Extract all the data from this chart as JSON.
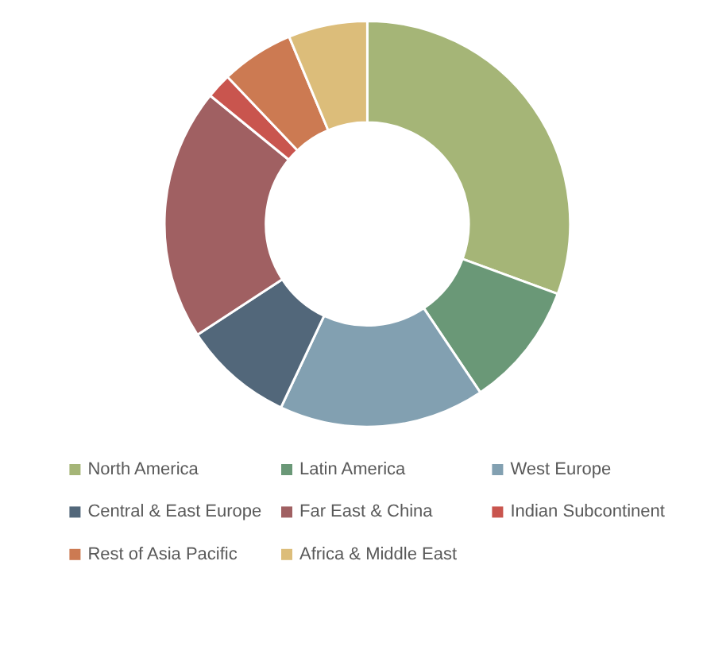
{
  "chart_data": {
    "type": "donut",
    "categories": [
      "North America",
      "Latin America",
      "West Europe",
      "Central & East Europe",
      "Far East & China",
      "Indian Subcontinent",
      "Rest of Asia Pacific",
      "Africa & Middle East"
    ],
    "values": [
      30.6,
      10.0,
      16.4,
      8.8,
      20.1,
      2.0,
      5.8,
      6.3
    ],
    "colors": [
      "#a5b577",
      "#6a9877",
      "#82a0b1",
      "#52677a",
      "#a06062",
      "#c9554e",
      "#cc7a52",
      "#dcbd7a"
    ],
    "legend": "bottom"
  }
}
